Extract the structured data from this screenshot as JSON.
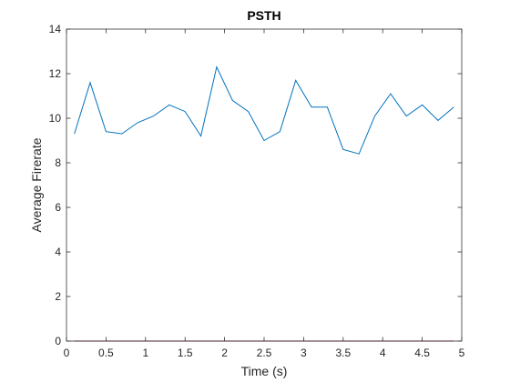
{
  "chart_data": {
    "type": "line",
    "title": "PSTH",
    "xlabel": "Time (s)",
    "ylabel": "Average Firerate",
    "xlim": [
      0,
      5
    ],
    "ylim": [
      0,
      14
    ],
    "xticks": [
      0,
      0.5,
      1,
      1.5,
      2,
      2.5,
      3,
      3.5,
      4,
      4.5,
      5
    ],
    "xtick_labels": [
      "0",
      "0.5",
      "1",
      "1.5",
      "2",
      "2.5",
      "3",
      "3.5",
      "4",
      "4.5",
      "5"
    ],
    "yticks": [
      0,
      2,
      4,
      6,
      8,
      10,
      12,
      14
    ],
    "ytick_labels": [
      "0",
      "2",
      "4",
      "6",
      "8",
      "10",
      "12",
      "14"
    ],
    "grid": false,
    "box": true,
    "series": [
      {
        "color": "#0072bd",
        "x": [
          0.1,
          0.3,
          0.5,
          0.7,
          0.9,
          1.1,
          1.3,
          1.5,
          1.7,
          1.9,
          2.1,
          2.3,
          2.5,
          2.7,
          2.9,
          3.1,
          3.3,
          3.5,
          3.7,
          3.9,
          4.1,
          4.3,
          4.5,
          4.7,
          4.9
        ],
        "values": [
          9.3,
          11.6,
          9.4,
          9.3,
          9.8,
          10.1,
          10.6,
          10.3,
          9.2,
          12.3,
          10.8,
          10.3,
          9.0,
          9.4,
          11.7,
          10.5,
          10.5,
          8.6,
          8.4,
          10.1,
          11.1,
          10.1,
          10.6,
          9.9,
          10.5
        ]
      },
      {
        "color": "#a2142f",
        "x": [
          0.1,
          4.9
        ],
        "values": [
          0,
          0
        ]
      }
    ]
  }
}
